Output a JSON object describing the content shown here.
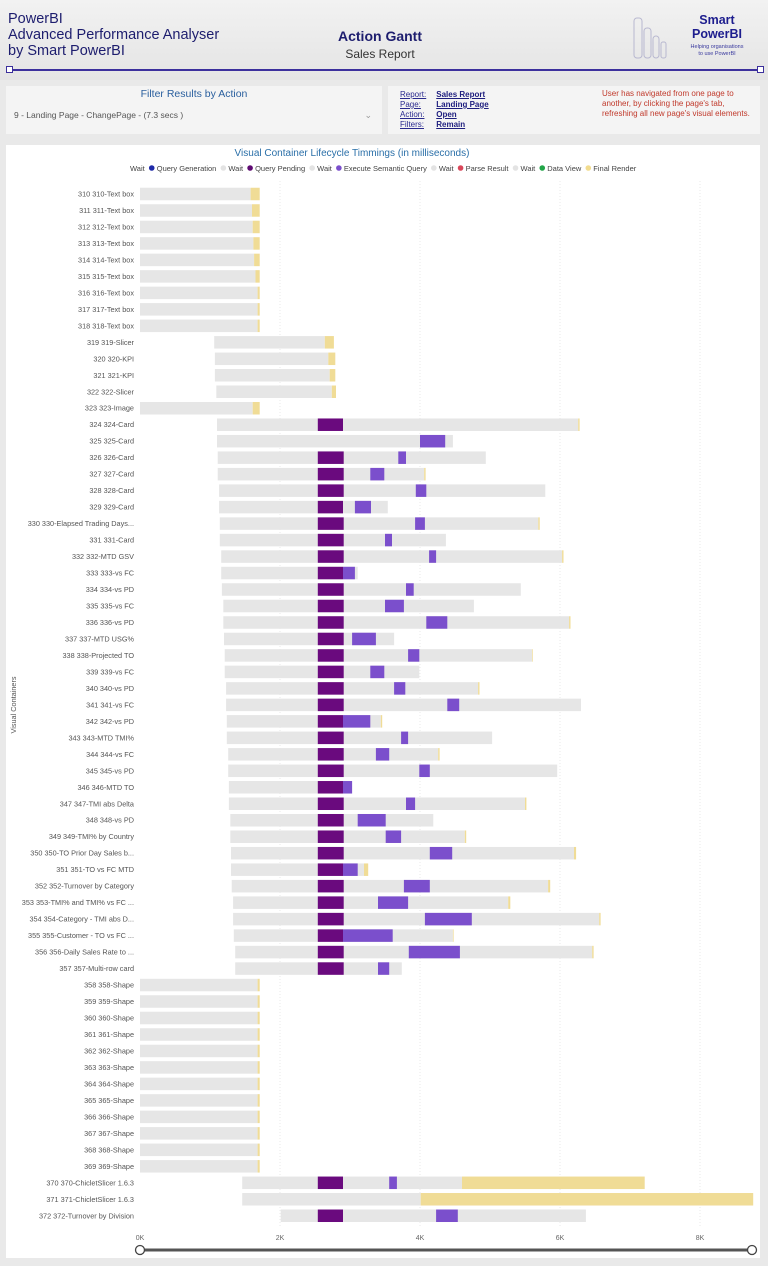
{
  "header": {
    "app_title_lines": [
      "PowerBI",
      "Advanced Performance Analyser",
      "by Smart PowerBI"
    ],
    "report_title": "Action Gantt",
    "report_subtitle": "Sales Report",
    "brand_name_lines": [
      "Smart",
      "PowerBI"
    ],
    "brand_tagline_lines": [
      "Helping organisations",
      "to use PowerBI"
    ]
  },
  "filter": {
    "title": "Filter Results by Action",
    "selected": "9 - Landing Page - ChangePage - (7.3 secs )"
  },
  "info": {
    "rows": [
      {
        "label": "Report:",
        "value": "Sales Report"
      },
      {
        "label": "Page:",
        "value": "Landing Page"
      },
      {
        "label": "Action:",
        "value": "Open"
      },
      {
        "label": "Filters:",
        "value": "Remain"
      }
    ],
    "note": "User has navigated from one page to another, by clicking the page's tab, refreshing all new page's visual elements."
  },
  "chart_data": {
    "type": "gantt",
    "title": "Visual Container Lifecycle Timmings (in milliseconds)",
    "ylabel": "Visual Containers",
    "xlabel": "",
    "xlim": [
      0,
      8800
    ],
    "x_ticks": [
      {
        "v": 0,
        "label": "0K"
      },
      {
        "v": 2000,
        "label": "2K"
      },
      {
        "v": 4000,
        "label": "4K"
      },
      {
        "v": 6000,
        "label": "6K"
      },
      {
        "v": 8000,
        "label": "8K"
      }
    ],
    "grid": true,
    "legend_position": "top",
    "legend": [
      {
        "name": "Wait",
        "color": "#e3e3e3",
        "dot": false
      },
      {
        "name": "Query Generation",
        "color": "#1f2aa8",
        "dot": true
      },
      {
        "name": "Wait",
        "color": "#e3e3e3",
        "dot": true
      },
      {
        "name": "Query Pending",
        "color": "#5e0a72",
        "dot": true
      },
      {
        "name": "Wait",
        "color": "#e3e3e3",
        "dot": true
      },
      {
        "name": "Execute Semantic Query",
        "color": "#7b4fcc",
        "dot": true
      },
      {
        "name": "Wait",
        "color": "#e3e3e3",
        "dot": true
      },
      {
        "name": "Parse Result",
        "color": "#d9475a",
        "dot": true
      },
      {
        "name": "Wait",
        "color": "#e3e3e3",
        "dot": true
      },
      {
        "name": "Data View",
        "color": "#22a548",
        "dot": true
      },
      {
        "name": "Final Render",
        "color": "#f2dc8e",
        "dot": true
      }
    ],
    "colors": {
      "wait": "#e6e6e6",
      "query_pending": "#6a0a7e",
      "execute": "#7b4fcc",
      "final_render": "#f0dc96"
    },
    "row_fields": [
      "label",
      "start",
      "query_pending_start",
      "query_pending_end",
      "execute_start",
      "execute_end",
      "render_start",
      "end"
    ],
    "rows": [
      [
        "310 310-Text box",
        0,
        null,
        null,
        null,
        null,
        1580,
        1710
      ],
      [
        "311 311-Text box",
        0,
        null,
        null,
        null,
        null,
        1600,
        1710
      ],
      [
        "312 312-Text box",
        0,
        null,
        null,
        null,
        null,
        1610,
        1710
      ],
      [
        "313 313-Text box",
        0,
        null,
        null,
        null,
        null,
        1620,
        1710
      ],
      [
        "314 314-Text box",
        0,
        null,
        null,
        null,
        null,
        1630,
        1710
      ],
      [
        "315 315-Text box",
        0,
        null,
        null,
        null,
        null,
        1650,
        1710
      ],
      [
        "316 316-Text box",
        0,
        null,
        null,
        null,
        null,
        1680,
        1710
      ],
      [
        "317 317-Text box",
        0,
        null,
        null,
        null,
        null,
        1680,
        1710
      ],
      [
        "318 318-Text box",
        0,
        null,
        null,
        null,
        null,
        1680,
        1710
      ],
      [
        "319 319-Slicer",
        1060,
        null,
        null,
        null,
        null,
        2640,
        2770
      ],
      [
        "320 320-KPI",
        1070,
        null,
        null,
        null,
        null,
        2690,
        2790
      ],
      [
        "321 321-KPI",
        1070,
        null,
        null,
        null,
        null,
        2710,
        2790
      ],
      [
        "322 322-Slicer",
        1090,
        null,
        null,
        null,
        null,
        2740,
        2800
      ],
      [
        "323 323-Image",
        0,
        null,
        null,
        null,
        null,
        1610,
        1710
      ],
      [
        "324 324-Card",
        1100,
        2540,
        2900,
        null,
        null,
        6260,
        6280
      ],
      [
        "325 325-Card",
        1100,
        null,
        null,
        4000,
        4360,
        4470,
        4470
      ],
      [
        "326 326-Card",
        1110,
        2540,
        2910,
        3690,
        3800,
        4940,
        4940
      ],
      [
        "327 327-Card",
        1110,
        2540,
        2910,
        3290,
        3490,
        4060,
        4080
      ],
      [
        "328 328-Card",
        1130,
        2540,
        2910,
        3940,
        4090,
        5790,
        5790
      ],
      [
        "329 329-Card",
        1130,
        2540,
        2900,
        3070,
        3300,
        3540,
        3540
      ],
      [
        "330 330-Elapsed Trading Days...",
        1140,
        2540,
        2910,
        3930,
        4070,
        5690,
        5710
      ],
      [
        "331 331-Card",
        1140,
        2540,
        2910,
        3500,
        3600,
        4370,
        4370
      ],
      [
        "332 332-MTD GSV",
        1160,
        2540,
        2910,
        4130,
        4230,
        6030,
        6050
      ],
      [
        "333 333-vs FC",
        1160,
        2540,
        2900,
        2900,
        3070,
        3110,
        3110
      ],
      [
        "334 334-vs PD",
        1170,
        2540,
        2910,
        3800,
        3910,
        5440,
        5440
      ],
      [
        "335 335-vs FC",
        1190,
        2540,
        2910,
        3500,
        3770,
        4770,
        4770
      ],
      [
        "336 336-vs PD",
        1190,
        2540,
        2910,
        4090,
        4390,
        6130,
        6150
      ],
      [
        "337 337-MTD USG%",
        1200,
        2540,
        2910,
        3030,
        3370,
        3630,
        3630
      ],
      [
        "338 338-Projected TO",
        1210,
        2540,
        2910,
        3830,
        3990,
        5600,
        5610
      ],
      [
        "339 339-vs FC",
        1210,
        2540,
        2910,
        3290,
        3490,
        3990,
        3990
      ],
      [
        "340 340-vs PD",
        1230,
        2540,
        2910,
        3630,
        3790,
        4830,
        4850
      ],
      [
        "341 341-vs FC",
        1230,
        2540,
        2910,
        4390,
        4560,
        6300,
        6300
      ],
      [
        "342 342-vs PD",
        1240,
        2540,
        2900,
        2900,
        3290,
        3440,
        3460
      ],
      [
        "343 343-MTD TMI%",
        1240,
        2540,
        2910,
        3730,
        3830,
        5030,
        5030
      ],
      [
        "344 344-vs FC",
        1260,
        2540,
        2910,
        3370,
        3560,
        4260,
        4280
      ],
      [
        "345 345-vs PD",
        1260,
        2540,
        2910,
        3990,
        4140,
        5960,
        5960
      ],
      [
        "346 346-MTD TO",
        1270,
        2540,
        2900,
        2900,
        3030,
        3030,
        3030
      ],
      [
        "347 347-TMI abs Delta",
        1270,
        2540,
        2910,
        3800,
        3930,
        5500,
        5520
      ],
      [
        "348 348-vs PD",
        1290,
        2540,
        2910,
        3110,
        3510,
        4190,
        4190
      ],
      [
        "349 349-TMI% by Country",
        1290,
        2540,
        2910,
        3510,
        3730,
        4640,
        4660
      ],
      [
        "350 350-TO Prior Day Sales b...",
        1300,
        2540,
        2910,
        4140,
        4460,
        6200,
        6230
      ],
      [
        "351 351-TO vs FC MTD",
        1300,
        2540,
        2900,
        2900,
        3110,
        3200,
        3260
      ],
      [
        "352 352-Turnover by Category",
        1310,
        2540,
        2910,
        3770,
        4140,
        5830,
        5860
      ],
      [
        "353 353-TMI% and TMI% vs FC ...",
        1330,
        2540,
        2910,
        3400,
        3830,
        5260,
        5290
      ],
      [
        "354 354-Category - TMI abs D...",
        1330,
        2540,
        2910,
        4070,
        4740,
        6560,
        6580
      ],
      [
        "355 355-Customer - TO vs FC ...",
        1340,
        2540,
        2900,
        2900,
        3610,
        4470,
        4480
      ],
      [
        "356 356-Daily Sales Rate to ...",
        1360,
        2540,
        2910,
        3840,
        4570,
        6460,
        6480
      ],
      [
        "357 357-Multi-row card",
        1360,
        2540,
        2910,
        3400,
        3560,
        3740,
        3740
      ],
      [
        "358 358-Shape",
        0,
        null,
        null,
        null,
        null,
        1680,
        1710
      ],
      [
        "359 359-Shape",
        0,
        null,
        null,
        null,
        null,
        1680,
        1710
      ],
      [
        "360 360-Shape",
        0,
        null,
        null,
        null,
        null,
        1680,
        1710
      ],
      [
        "361 361-Shape",
        0,
        null,
        null,
        null,
        null,
        1680,
        1710
      ],
      [
        "362 362-Shape",
        0,
        null,
        null,
        null,
        null,
        1680,
        1710
      ],
      [
        "363 363-Shape",
        0,
        null,
        null,
        null,
        null,
        1680,
        1710
      ],
      [
        "364 364-Shape",
        0,
        null,
        null,
        null,
        null,
        1680,
        1710
      ],
      [
        "365 365-Shape",
        0,
        null,
        null,
        null,
        null,
        1680,
        1710
      ],
      [
        "366 366-Shape",
        0,
        null,
        null,
        null,
        null,
        1680,
        1710
      ],
      [
        "367 367-Shape",
        0,
        null,
        null,
        null,
        null,
        1680,
        1710
      ],
      [
        "368 368-Shape",
        0,
        null,
        null,
        null,
        null,
        1680,
        1710
      ],
      [
        "369 369-Shape",
        0,
        null,
        null,
        null,
        null,
        1680,
        1710
      ],
      [
        "370 370-ChicletSlicer 1.6.3",
        1460,
        2540,
        2900,
        3560,
        3670,
        4600,
        7210
      ],
      [
        "371 371-ChicletSlicer 1.6.3",
        1460,
        null,
        null,
        null,
        null,
        4010,
        8760
      ],
      [
        "372 372-Turnover by Division",
        2010,
        2540,
        2900,
        4230,
        4540,
        6370,
        6370
      ]
    ]
  }
}
